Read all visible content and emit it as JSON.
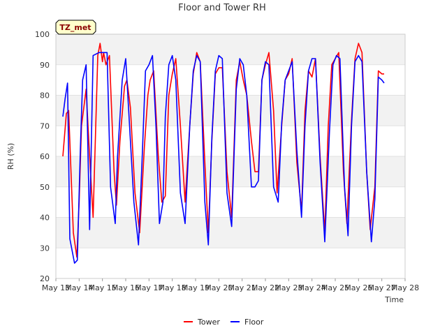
{
  "chart_data": {
    "type": "line",
    "title": "Floor and Tower RH",
    "xlabel": "Time",
    "ylabel": "RH (%)",
    "badge": "TZ_met",
    "ylim": [
      20,
      100
    ],
    "yticks": [
      20,
      30,
      40,
      50,
      60,
      70,
      80,
      90,
      100
    ],
    "xlim": [
      13,
      28
    ],
    "xticks": [
      13,
      14,
      15,
      16,
      17,
      18,
      19,
      20,
      21,
      22,
      23,
      24,
      25,
      26,
      27,
      28
    ],
    "xtick_labels": [
      "May 13",
      "May 14",
      "May 15",
      "May 16",
      "May 17",
      "May 18",
      "May 19",
      "May 20",
      "May 21",
      "May 22",
      "May 23",
      "May 24",
      "May 25",
      "May 26",
      "May 27",
      "May 28"
    ],
    "x_unit": "day of May",
    "grid": "horizontal bands",
    "legend_position": "bottom-center",
    "series": [
      {
        "name": "Tower",
        "color": "#ff0000",
        "x": [
          13.3,
          13.45,
          13.55,
          13.75,
          13.9,
          14.0,
          14.1,
          14.3,
          14.45,
          14.6,
          14.8,
          14.9,
          15.0,
          15.05,
          15.15,
          15.3,
          15.5,
          15.6,
          15.75,
          15.95,
          16.05,
          16.2,
          16.4,
          16.6,
          16.8,
          16.95,
          17.05,
          17.2,
          17.4,
          17.55,
          17.7,
          17.85,
          18.0,
          18.15,
          18.35,
          18.55,
          18.75,
          18.9,
          19.05,
          19.2,
          19.4,
          19.55,
          19.7,
          19.85,
          20.0,
          20.15,
          20.35,
          20.55,
          20.75,
          20.9,
          21.05,
          21.2,
          21.4,
          21.55,
          21.7,
          21.85,
          22.0,
          22.15,
          22.35,
          22.5,
          22.7,
          22.85,
          23.0,
          23.15,
          23.35,
          23.55,
          23.7,
          23.85,
          24.0,
          24.15,
          24.35,
          24.55,
          24.7,
          24.85,
          25.0,
          25.15,
          25.35,
          25.5,
          25.7,
          25.85,
          26.0,
          26.15,
          26.35,
          26.5,
          26.7,
          26.85,
          27.0,
          27.1
        ],
        "y": [
          60,
          74,
          75,
          35,
          27,
          45,
          70,
          82,
          60,
          40,
          93,
          97,
          91,
          94,
          90,
          93,
          55,
          44,
          65,
          83,
          85,
          76,
          48,
          35,
          63,
          80,
          85,
          88,
          60,
          45,
          47,
          80,
          87,
          92,
          70,
          45,
          70,
          87,
          94,
          91,
          58,
          35,
          65,
          87,
          89,
          89,
          55,
          40,
          85,
          91,
          85,
          80,
          65,
          55,
          55,
          85,
          90,
          94,
          75,
          48,
          70,
          85,
          87,
          92,
          58,
          42,
          75,
          88,
          86,
          92,
          60,
          35,
          70,
          90,
          92,
          94,
          55,
          38,
          72,
          92,
          97,
          94,
          55,
          36,
          50,
          88,
          87,
          87
        ]
      },
      {
        "name": "Floor",
        "color": "#0000ff",
        "x": [
          13.3,
          13.4,
          13.5,
          13.6,
          13.8,
          13.92,
          14.05,
          14.15,
          14.3,
          14.45,
          14.6,
          14.85,
          15.0,
          15.2,
          15.35,
          15.55,
          15.65,
          15.85,
          16.0,
          16.15,
          16.35,
          16.55,
          16.7,
          16.85,
          17.0,
          17.15,
          17.3,
          17.45,
          17.6,
          17.7,
          17.85,
          18.0,
          18.15,
          18.35,
          18.55,
          18.75,
          18.9,
          19.05,
          19.2,
          19.4,
          19.55,
          19.7,
          19.85,
          20.0,
          20.15,
          20.35,
          20.55,
          20.75,
          20.9,
          21.05,
          21.2,
          21.4,
          21.55,
          21.7,
          21.85,
          22.0,
          22.15,
          22.35,
          22.55,
          22.7,
          22.85,
          23.0,
          23.15,
          23.35,
          23.55,
          23.7,
          23.85,
          24.0,
          24.15,
          24.35,
          24.55,
          24.75,
          24.9,
          25.05,
          25.2,
          25.4,
          25.55,
          25.7,
          25.85,
          26.0,
          26.15,
          26.35,
          26.55,
          26.7,
          26.85,
          27.0,
          27.1
        ],
        "y": [
          73,
          79,
          84,
          33,
          25,
          26,
          62,
          85,
          90,
          36,
          93,
          94,
          94,
          94,
          50,
          38,
          60,
          85,
          92,
          72,
          45,
          31,
          58,
          88,
          90,
          93,
          70,
          38,
          45,
          73,
          90,
          93,
          85,
          48,
          38,
          70,
          88,
          93,
          91,
          45,
          31,
          66,
          88,
          93,
          92,
          48,
          37,
          82,
          92,
          90,
          80,
          50,
          50,
          52,
          85,
          91,
          90,
          50,
          45,
          71,
          85,
          88,
          91,
          62,
          40,
          70,
          88,
          92,
          92,
          58,
          32,
          68,
          90,
          93,
          92,
          50,
          34,
          70,
          91,
          93,
          91,
          55,
          32,
          46,
          86,
          85,
          84
        ]
      }
    ]
  }
}
